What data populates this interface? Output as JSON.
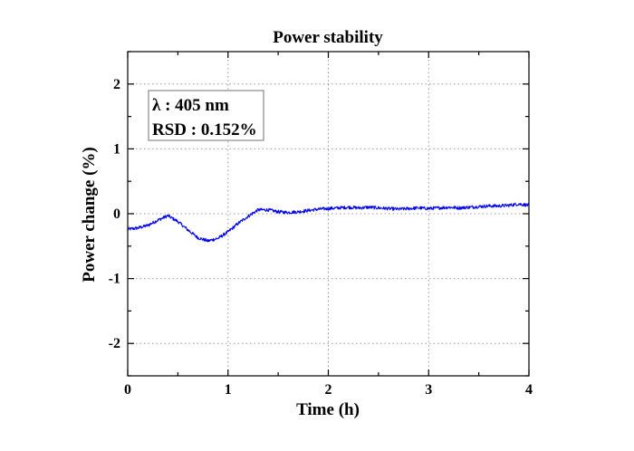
{
  "chart_data": {
    "type": "line",
    "title": "Power stability",
    "xlabel": "Time (h)",
    "ylabel": "Power change (%)",
    "xlim": [
      0,
      4
    ],
    "ylim": [
      -2.5,
      2.5
    ],
    "x_ticks": [
      0,
      1,
      2,
      3,
      4
    ],
    "y_ticks": [
      -2,
      -1,
      0,
      1,
      2
    ],
    "x_tick_labels": [
      "0",
      "1",
      "2",
      "3",
      "4"
    ],
    "y_tick_labels": [
      "-2",
      "-1",
      "0",
      "1",
      "2"
    ],
    "grid": true,
    "legend_box": {
      "placement": "top-left",
      "lines": [
        "λ : 405 nm",
        "RSD : 0.152%"
      ]
    },
    "series": [
      {
        "color": "#0000ee",
        "x": [
          0,
          0.1,
          0.2,
          0.3,
          0.4,
          0.5,
          0.6,
          0.7,
          0.8,
          0.9,
          1.0,
          1.1,
          1.2,
          1.3,
          1.4,
          1.5,
          1.6,
          1.7,
          1.8,
          1.9,
          2.0,
          2.1,
          2.2,
          2.3,
          2.4,
          2.5,
          2.6,
          2.7,
          2.8,
          2.9,
          3.0,
          3.1,
          3.2,
          3.3,
          3.4,
          3.5,
          3.6,
          3.7,
          3.8,
          3.9,
          4.0
        ],
        "y": [
          -0.24,
          -0.22,
          -0.18,
          -0.1,
          -0.03,
          -0.12,
          -0.25,
          -0.37,
          -0.42,
          -0.38,
          -0.28,
          -0.15,
          -0.04,
          0.06,
          0.06,
          0.03,
          0.02,
          0.03,
          0.05,
          0.07,
          0.08,
          0.09,
          0.1,
          0.09,
          0.1,
          0.09,
          0.08,
          0.07,
          0.08,
          0.09,
          0.08,
          0.09,
          0.1,
          0.09,
          0.1,
          0.11,
          0.12,
          0.12,
          0.13,
          0.15,
          0.13
        ]
      }
    ]
  }
}
